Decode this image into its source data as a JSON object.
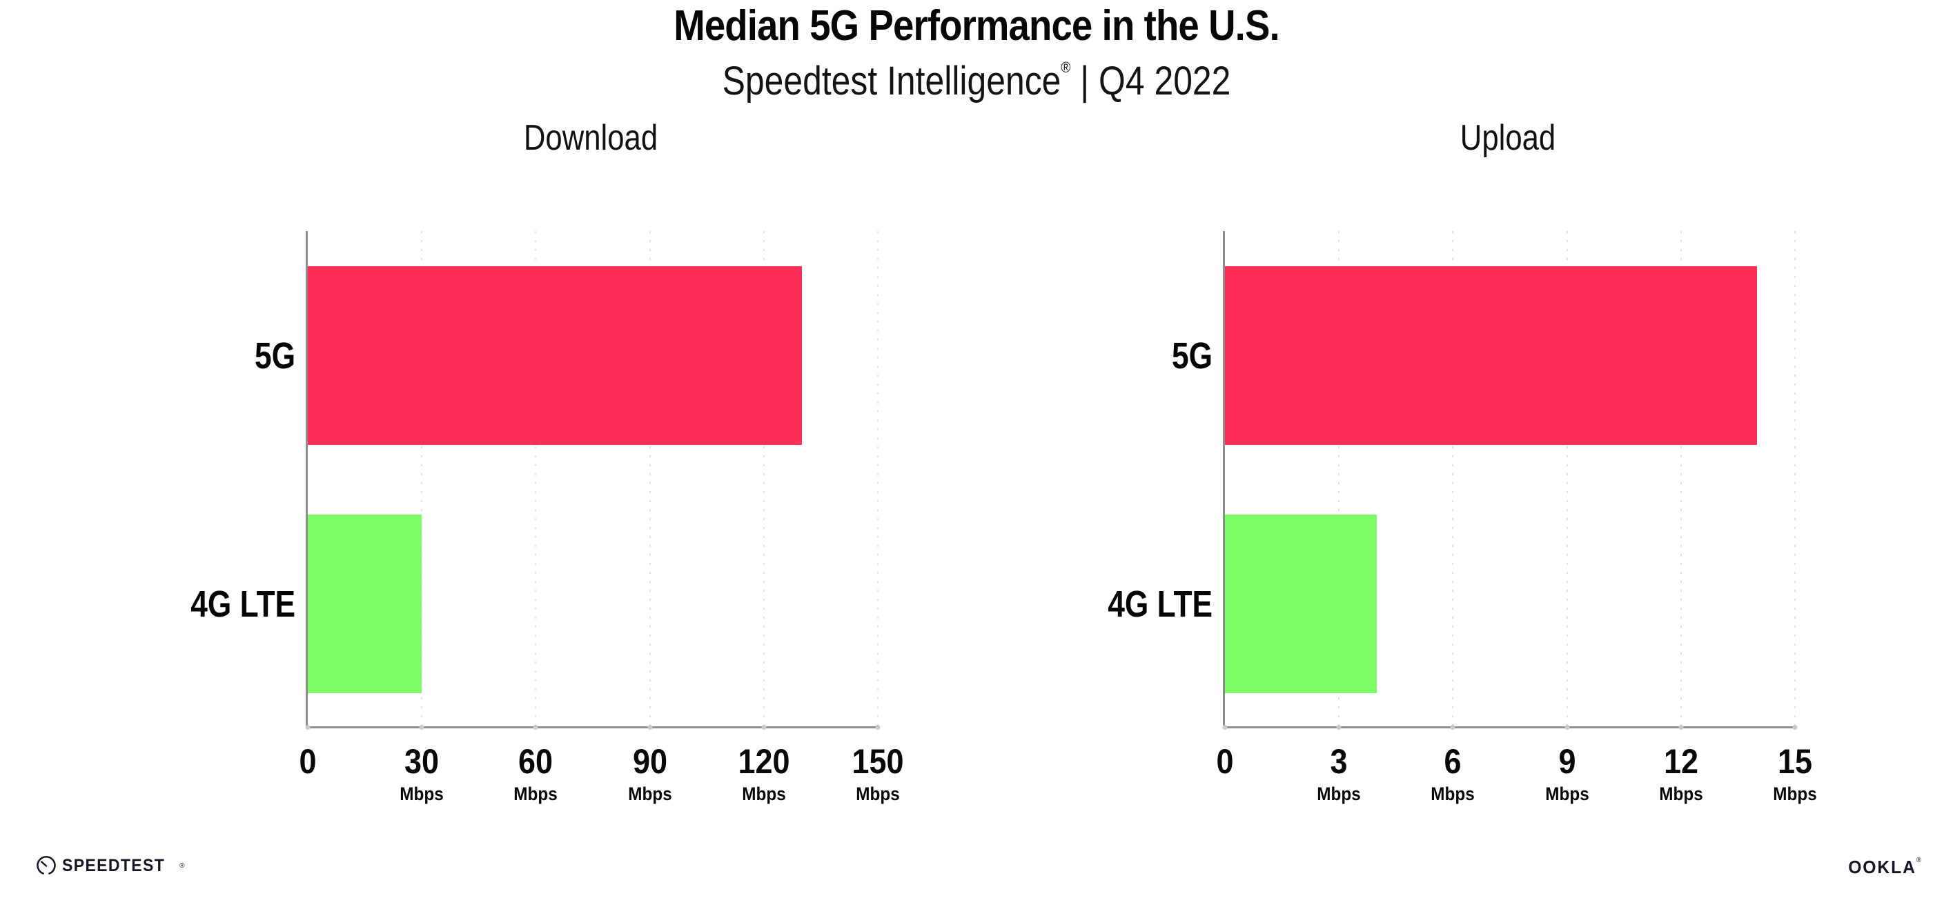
{
  "header": {
    "title": "Median 5G Performance in the U.S.",
    "subtitle_brand": "Speedtest Intelligence",
    "subtitle_registered": "®",
    "subtitle_separator": " | ",
    "subtitle_period": "Q4 2022"
  },
  "chart_data": [
    {
      "type": "bar",
      "orientation": "horizontal",
      "title": "Download",
      "categories": [
        "5G",
        "4G LTE"
      ],
      "values": [
        130,
        30
      ],
      "unit": "Mbps",
      "xlim": [
        0,
        150
      ],
      "xticks": [
        0,
        30,
        60,
        90,
        120,
        150
      ],
      "bar_colors": [
        "#FF2E56",
        "#7DFC65"
      ],
      "grid": "dotted-vertical-major-ticks",
      "legend": "none"
    },
    {
      "type": "bar",
      "orientation": "horizontal",
      "title": "Upload",
      "categories": [
        "5G",
        "4G LTE"
      ],
      "values": [
        14,
        4
      ],
      "unit": "Mbps",
      "xlim": [
        0,
        15
      ],
      "xticks": [
        0,
        3,
        6,
        9,
        12,
        15
      ],
      "bar_colors": [
        "#FF2E56",
        "#7DFC65"
      ],
      "grid": "dotted-vertical-major-ticks",
      "legend": "none"
    }
  ],
  "footer": {
    "speedtest_label": "SPEEDTEST",
    "speedtest_registered": "®",
    "ookla_label": "OOKLA",
    "ookla_registered": "®"
  },
  "colors": {
    "bar_5g": "#FF2E56",
    "bar_4g_lte": "#7DFC65",
    "axis": "#8d8d8d",
    "gridline": "#e1e1ea",
    "text": "#0b0b0b",
    "logo": "#141526"
  }
}
